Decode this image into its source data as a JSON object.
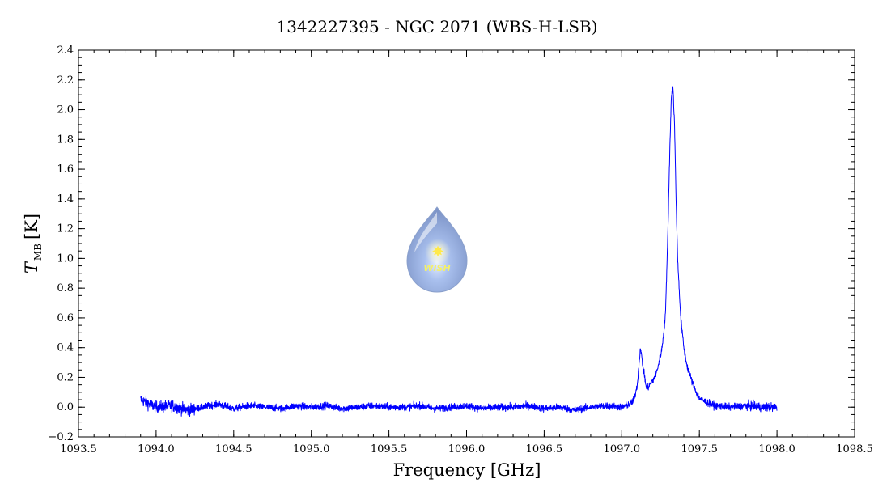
{
  "chart_data": {
    "type": "line",
    "title": "1342227395 - NGC 2071 (WBS-H-LSB)",
    "xlabel": "Frequency [GHz]",
    "ylabel_main": "T",
    "ylabel_sub": "MB",
    "ylabel_unit": "[K]",
    "xlim": [
      1093.5,
      1098.5
    ],
    "ylim": [
      -0.2,
      2.4
    ],
    "x_ticks": [
      1093.5,
      1094.0,
      1094.5,
      1095.0,
      1095.5,
      1096.0,
      1096.5,
      1097.0,
      1097.5,
      1098.0,
      1098.5
    ],
    "x_tick_labels": [
      "1093.5",
      "1094.0",
      "1094.5",
      "1095.0",
      "1095.5",
      "1096.0",
      "1096.5",
      "1097.0",
      "1097.5",
      "1098.0",
      "1098.5"
    ],
    "y_ticks": [
      -0.2,
      0.0,
      0.2,
      0.4,
      0.6,
      0.8,
      1.0,
      1.2,
      1.4,
      1.6,
      1.8,
      2.0,
      2.2,
      2.4
    ],
    "y_tick_labels": [
      "−0.2",
      "0.0",
      "0.2",
      "0.4",
      "0.6",
      "0.8",
      "1.0",
      "1.2",
      "1.4",
      "1.6",
      "1.8",
      "2.0",
      "2.2",
      "2.4"
    ],
    "grid": false,
    "line_color": "#0000ff",
    "series": [
      {
        "x": [
          1093.9,
          1094.0,
          1094.1,
          1094.2,
          1094.3,
          1094.4,
          1094.5,
          1094.6,
          1094.7,
          1094.8,
          1094.9,
          1095.0,
          1095.1,
          1095.2,
          1095.3,
          1095.4,
          1095.5,
          1095.6,
          1095.7,
          1095.8,
          1095.9,
          1096.0,
          1096.1,
          1096.2,
          1096.3,
          1096.4,
          1096.5,
          1096.6,
          1096.7,
          1096.8,
          1096.9,
          1097.0,
          1097.05,
          1097.08,
          1097.1,
          1097.12,
          1097.14,
          1097.16,
          1097.18,
          1097.2,
          1097.22,
          1097.24,
          1097.26,
          1097.28,
          1097.29,
          1097.3,
          1097.31,
          1097.32,
          1097.33,
          1097.34,
          1097.35,
          1097.36,
          1097.38,
          1097.4,
          1097.42,
          1097.45,
          1097.48,
          1097.5,
          1097.55,
          1097.6,
          1097.7,
          1097.8,
          1097.9,
          1098.0
        ],
        "y": [
          0.05,
          0.0,
          0.01,
          -0.02,
          0.0,
          0.02,
          -0.01,
          0.01,
          0.0,
          -0.01,
          0.01,
          0.0,
          0.01,
          -0.01,
          0.0,
          0.01,
          0.0,
          0.0,
          0.01,
          -0.01,
          0.0,
          0.01,
          -0.01,
          0.0,
          0.0,
          0.01,
          -0.01,
          0.0,
          -0.02,
          0.0,
          0.01,
          0.0,
          0.02,
          0.05,
          0.15,
          0.4,
          0.25,
          0.12,
          0.15,
          0.18,
          0.22,
          0.3,
          0.4,
          0.6,
          0.9,
          1.3,
          1.75,
          2.1,
          2.15,
          1.9,
          1.4,
          1.0,
          0.6,
          0.4,
          0.28,
          0.18,
          0.1,
          0.06,
          0.03,
          0.01,
          0.0,
          0.01,
          0.0,
          0.0
        ]
      }
    ]
  },
  "logo": {
    "text": "WISH"
  }
}
